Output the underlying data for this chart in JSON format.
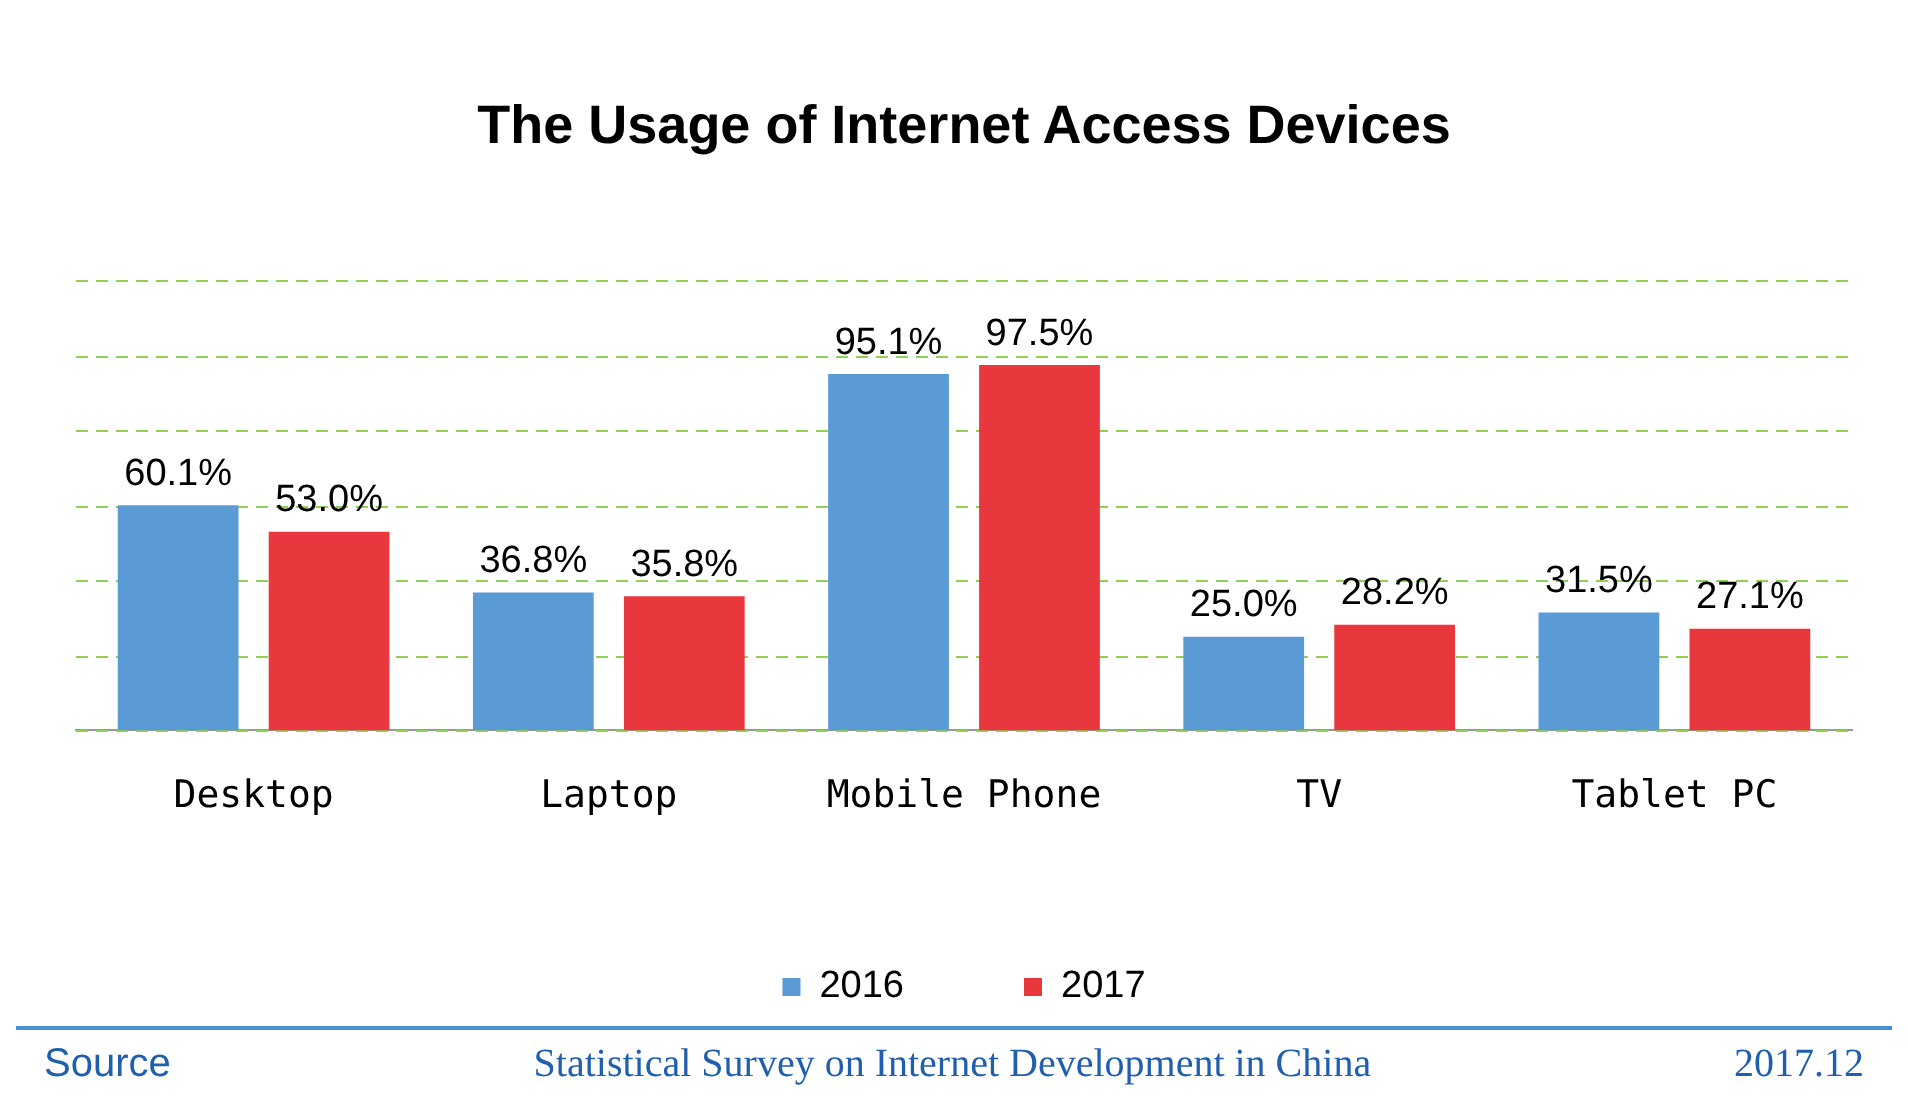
{
  "chart_data": {
    "type": "bar",
    "title": "The Usage of Internet Access Devices",
    "categories": [
      "Desktop",
      "Laptop",
      "Mobile Phone",
      "TV",
      "Tablet PC"
    ],
    "series": [
      {
        "name": "2016",
        "color": "#5b9bd5",
        "values": [
          60.1,
          36.8,
          95.1,
          25.0,
          31.5
        ],
        "value_labels": [
          "60.1%",
          "36.8%",
          "95.1%",
          "25.0%",
          "31.5%"
        ]
      },
      {
        "name": "2017",
        "color": "#e8383d",
        "values": [
          53.0,
          35.8,
          97.5,
          28.2,
          27.1
        ],
        "value_labels": [
          "53.0%",
          "35.8%",
          "97.5%",
          "28.2%",
          "27.1%"
        ]
      }
    ],
    "ylim": [
      0,
      120
    ],
    "yticks": [
      {
        "value": 0,
        "label": null
      },
      {
        "value": 20,
        "label": null
      },
      {
        "value": 40,
        "label": null
      },
      {
        "value": 60,
        "label": null
      },
      {
        "value": 80,
        "label": null
      },
      {
        "value": 100,
        "label": null
      },
      {
        "value": 120,
        "label": null
      }
    ],
    "grid": "y",
    "tick_labels": "x",
    "legend": "bottom",
    "annotations": [
      "Source",
      "Statistical Survey on Internet Development in China",
      "2017.12"
    ]
  }
}
